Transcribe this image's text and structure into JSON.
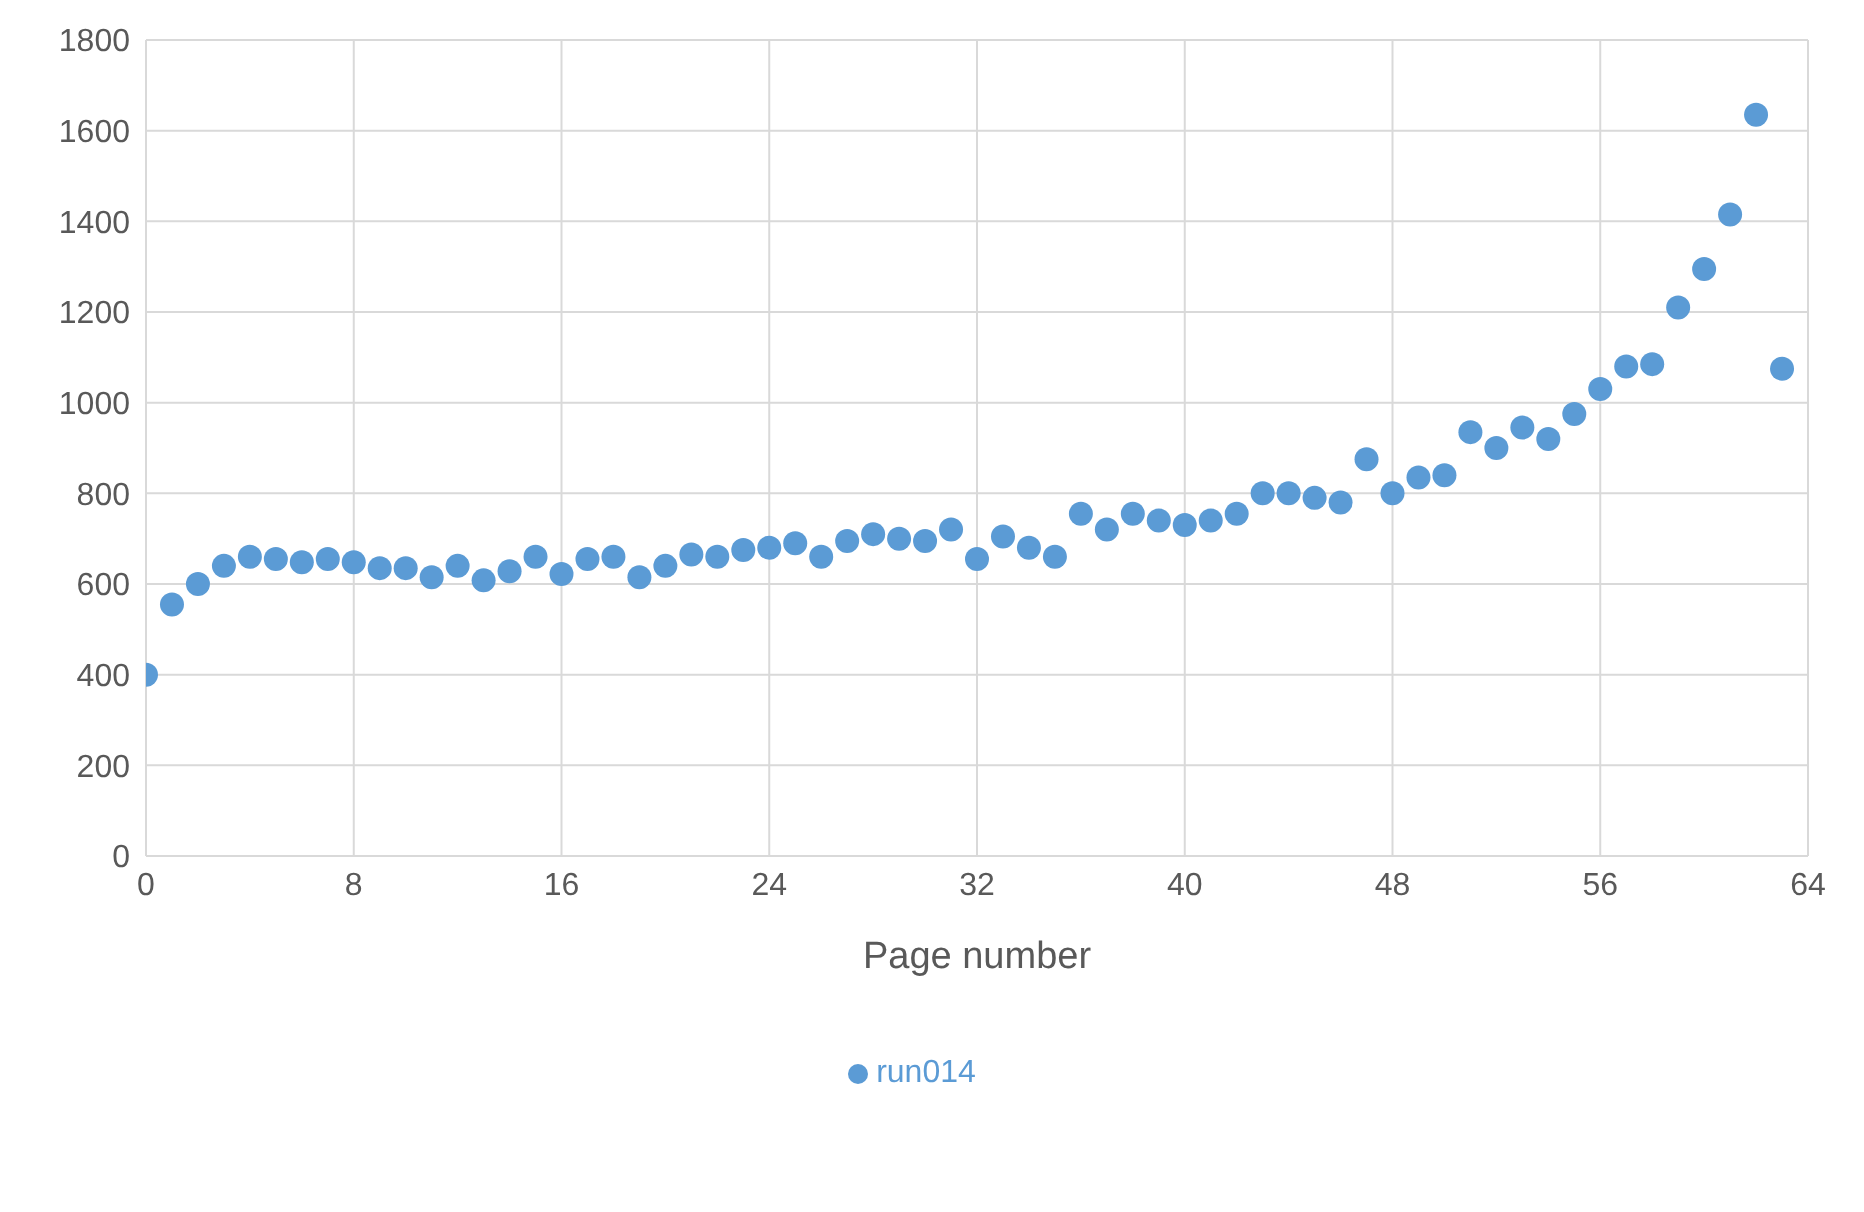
{
  "chart_data": {
    "type": "scatter",
    "xlabel": "Page number",
    "x": [
      0,
      1,
      2,
      3,
      4,
      5,
      6,
      7,
      8,
      9,
      10,
      11,
      12,
      13,
      14,
      15,
      16,
      17,
      18,
      19,
      20,
      21,
      22,
      23,
      24,
      25,
      26,
      27,
      28,
      29,
      30,
      31,
      32,
      33,
      34,
      35,
      36,
      37,
      38,
      39,
      40,
      41,
      42,
      43,
      44,
      45,
      46,
      47,
      48,
      49,
      50,
      51,
      52,
      53,
      54,
      55,
      56,
      57,
      58,
      59,
      60,
      61,
      62,
      63
    ],
    "series": [
      {
        "name": "run014",
        "color": "#5b9bd5",
        "values": [
          400,
          555,
          600,
          640,
          660,
          655,
          648,
          655,
          648,
          635,
          635,
          615,
          640,
          608,
          628,
          660,
          622,
          655,
          660,
          615,
          640,
          665,
          660,
          675,
          680,
          690,
          660,
          695,
          710,
          700,
          695,
          720,
          655,
          705,
          680,
          660,
          755,
          720,
          755,
          740,
          730,
          740,
          755,
          800,
          800,
          790,
          780,
          875,
          800,
          835,
          840,
          935,
          900,
          945,
          920,
          975,
          1030,
          1080,
          1085,
          1210,
          1295,
          1415,
          1635,
          1075
        ]
      }
    ],
    "xlim": [
      0,
      64
    ],
    "xticks": [
      0,
      8,
      16,
      24,
      32,
      40,
      48,
      56,
      64
    ],
    "ylim": [
      0,
      1800
    ],
    "yticks": [
      0,
      200,
      400,
      600,
      800,
      1000,
      1200,
      1400,
      1600,
      1800
    ],
    "grid": true,
    "legend": "bottom",
    "marker": "circle"
  }
}
